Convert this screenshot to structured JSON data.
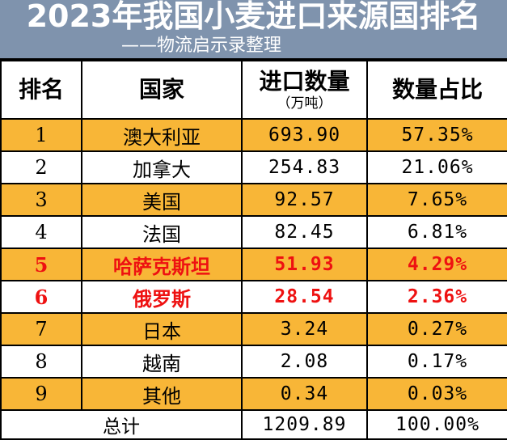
{
  "header": {
    "title": "2023年我国小麦进口来源国排名",
    "subtitle": "——物流启示录整理"
  },
  "table": {
    "columns": {
      "rank": "排名",
      "country": "国家",
      "volume": "进口数量",
      "volume_unit": "（万吨）",
      "share": "数量占比"
    },
    "rows": [
      {
        "rank": "1",
        "country": "澳大利亚",
        "volume": "693.90",
        "share": "57.35%"
      },
      {
        "rank": "2",
        "country": "加拿大",
        "volume": "254.83",
        "share": "21.06%"
      },
      {
        "rank": "3",
        "country": "美国",
        "volume": "92.57",
        "share": "7.65%"
      },
      {
        "rank": "4",
        "country": "法国",
        "volume": "82.45",
        "share": "6.81%"
      },
      {
        "rank": "5",
        "country": "哈萨克斯坦",
        "volume": "51.93",
        "share": "4.29%"
      },
      {
        "rank": "6",
        "country": "俄罗斯",
        "volume": "28.54",
        "share": "2.36%"
      },
      {
        "rank": "7",
        "country": "日本",
        "volume": "3.24",
        "share": "0.27%"
      },
      {
        "rank": "8",
        "country": "越南",
        "volume": "2.08",
        "share": "0.17%"
      },
      {
        "rank": "9",
        "country": "其他",
        "volume": "0.34",
        "share": "0.03%"
      }
    ],
    "total": {
      "label": "总计",
      "volume": "1209.89",
      "share": "100.00%"
    }
  },
  "colors": {
    "header_bg": "#7f93ad",
    "stripe": "#f8b637",
    "highlight_text": "#ee1111"
  }
}
